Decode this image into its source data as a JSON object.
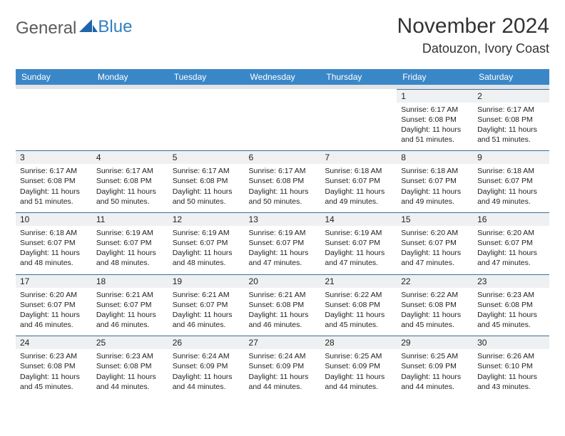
{
  "brand": {
    "word1": "General",
    "word2": "Blue"
  },
  "title": "November 2024",
  "location": "Datouzon, Ivory Coast",
  "colors": {
    "header_bg": "#3a87c8",
    "header_text": "#ffffff",
    "shade_bg": "#eef0f1",
    "rule": "#3a6fa0",
    "logo_gray": "#5a5a5a",
    "logo_blue": "#2f7fc1"
  },
  "daysOfWeek": [
    "Sunday",
    "Monday",
    "Tuesday",
    "Wednesday",
    "Thursday",
    "Friday",
    "Saturday"
  ],
  "weeks": [
    [
      null,
      null,
      null,
      null,
      null,
      {
        "d": "1",
        "sr": "Sunrise: 6:17 AM",
        "ss": "Sunset: 6:08 PM",
        "dl": "Daylight: 11 hours and 51 minutes."
      },
      {
        "d": "2",
        "sr": "Sunrise: 6:17 AM",
        "ss": "Sunset: 6:08 PM",
        "dl": "Daylight: 11 hours and 51 minutes."
      }
    ],
    [
      {
        "d": "3",
        "sr": "Sunrise: 6:17 AM",
        "ss": "Sunset: 6:08 PM",
        "dl": "Daylight: 11 hours and 51 minutes."
      },
      {
        "d": "4",
        "sr": "Sunrise: 6:17 AM",
        "ss": "Sunset: 6:08 PM",
        "dl": "Daylight: 11 hours and 50 minutes."
      },
      {
        "d": "5",
        "sr": "Sunrise: 6:17 AM",
        "ss": "Sunset: 6:08 PM",
        "dl": "Daylight: 11 hours and 50 minutes."
      },
      {
        "d": "6",
        "sr": "Sunrise: 6:17 AM",
        "ss": "Sunset: 6:08 PM",
        "dl": "Daylight: 11 hours and 50 minutes."
      },
      {
        "d": "7",
        "sr": "Sunrise: 6:18 AM",
        "ss": "Sunset: 6:07 PM",
        "dl": "Daylight: 11 hours and 49 minutes."
      },
      {
        "d": "8",
        "sr": "Sunrise: 6:18 AM",
        "ss": "Sunset: 6:07 PM",
        "dl": "Daylight: 11 hours and 49 minutes."
      },
      {
        "d": "9",
        "sr": "Sunrise: 6:18 AM",
        "ss": "Sunset: 6:07 PM",
        "dl": "Daylight: 11 hours and 49 minutes."
      }
    ],
    [
      {
        "d": "10",
        "sr": "Sunrise: 6:18 AM",
        "ss": "Sunset: 6:07 PM",
        "dl": "Daylight: 11 hours and 48 minutes."
      },
      {
        "d": "11",
        "sr": "Sunrise: 6:19 AM",
        "ss": "Sunset: 6:07 PM",
        "dl": "Daylight: 11 hours and 48 minutes."
      },
      {
        "d": "12",
        "sr": "Sunrise: 6:19 AM",
        "ss": "Sunset: 6:07 PM",
        "dl": "Daylight: 11 hours and 48 minutes."
      },
      {
        "d": "13",
        "sr": "Sunrise: 6:19 AM",
        "ss": "Sunset: 6:07 PM",
        "dl": "Daylight: 11 hours and 47 minutes."
      },
      {
        "d": "14",
        "sr": "Sunrise: 6:19 AM",
        "ss": "Sunset: 6:07 PM",
        "dl": "Daylight: 11 hours and 47 minutes."
      },
      {
        "d": "15",
        "sr": "Sunrise: 6:20 AM",
        "ss": "Sunset: 6:07 PM",
        "dl": "Daylight: 11 hours and 47 minutes."
      },
      {
        "d": "16",
        "sr": "Sunrise: 6:20 AM",
        "ss": "Sunset: 6:07 PM",
        "dl": "Daylight: 11 hours and 47 minutes."
      }
    ],
    [
      {
        "d": "17",
        "sr": "Sunrise: 6:20 AM",
        "ss": "Sunset: 6:07 PM",
        "dl": "Daylight: 11 hours and 46 minutes."
      },
      {
        "d": "18",
        "sr": "Sunrise: 6:21 AM",
        "ss": "Sunset: 6:07 PM",
        "dl": "Daylight: 11 hours and 46 minutes."
      },
      {
        "d": "19",
        "sr": "Sunrise: 6:21 AM",
        "ss": "Sunset: 6:07 PM",
        "dl": "Daylight: 11 hours and 46 minutes."
      },
      {
        "d": "20",
        "sr": "Sunrise: 6:21 AM",
        "ss": "Sunset: 6:08 PM",
        "dl": "Daylight: 11 hours and 46 minutes."
      },
      {
        "d": "21",
        "sr": "Sunrise: 6:22 AM",
        "ss": "Sunset: 6:08 PM",
        "dl": "Daylight: 11 hours and 45 minutes."
      },
      {
        "d": "22",
        "sr": "Sunrise: 6:22 AM",
        "ss": "Sunset: 6:08 PM",
        "dl": "Daylight: 11 hours and 45 minutes."
      },
      {
        "d": "23",
        "sr": "Sunrise: 6:23 AM",
        "ss": "Sunset: 6:08 PM",
        "dl": "Daylight: 11 hours and 45 minutes."
      }
    ],
    [
      {
        "d": "24",
        "sr": "Sunrise: 6:23 AM",
        "ss": "Sunset: 6:08 PM",
        "dl": "Daylight: 11 hours and 45 minutes."
      },
      {
        "d": "25",
        "sr": "Sunrise: 6:23 AM",
        "ss": "Sunset: 6:08 PM",
        "dl": "Daylight: 11 hours and 44 minutes."
      },
      {
        "d": "26",
        "sr": "Sunrise: 6:24 AM",
        "ss": "Sunset: 6:09 PM",
        "dl": "Daylight: 11 hours and 44 minutes."
      },
      {
        "d": "27",
        "sr": "Sunrise: 6:24 AM",
        "ss": "Sunset: 6:09 PM",
        "dl": "Daylight: 11 hours and 44 minutes."
      },
      {
        "d": "28",
        "sr": "Sunrise: 6:25 AM",
        "ss": "Sunset: 6:09 PM",
        "dl": "Daylight: 11 hours and 44 minutes."
      },
      {
        "d": "29",
        "sr": "Sunrise: 6:25 AM",
        "ss": "Sunset: 6:09 PM",
        "dl": "Daylight: 11 hours and 44 minutes."
      },
      {
        "d": "30",
        "sr": "Sunrise: 6:26 AM",
        "ss": "Sunset: 6:10 PM",
        "dl": "Daylight: 11 hours and 43 minutes."
      }
    ]
  ]
}
